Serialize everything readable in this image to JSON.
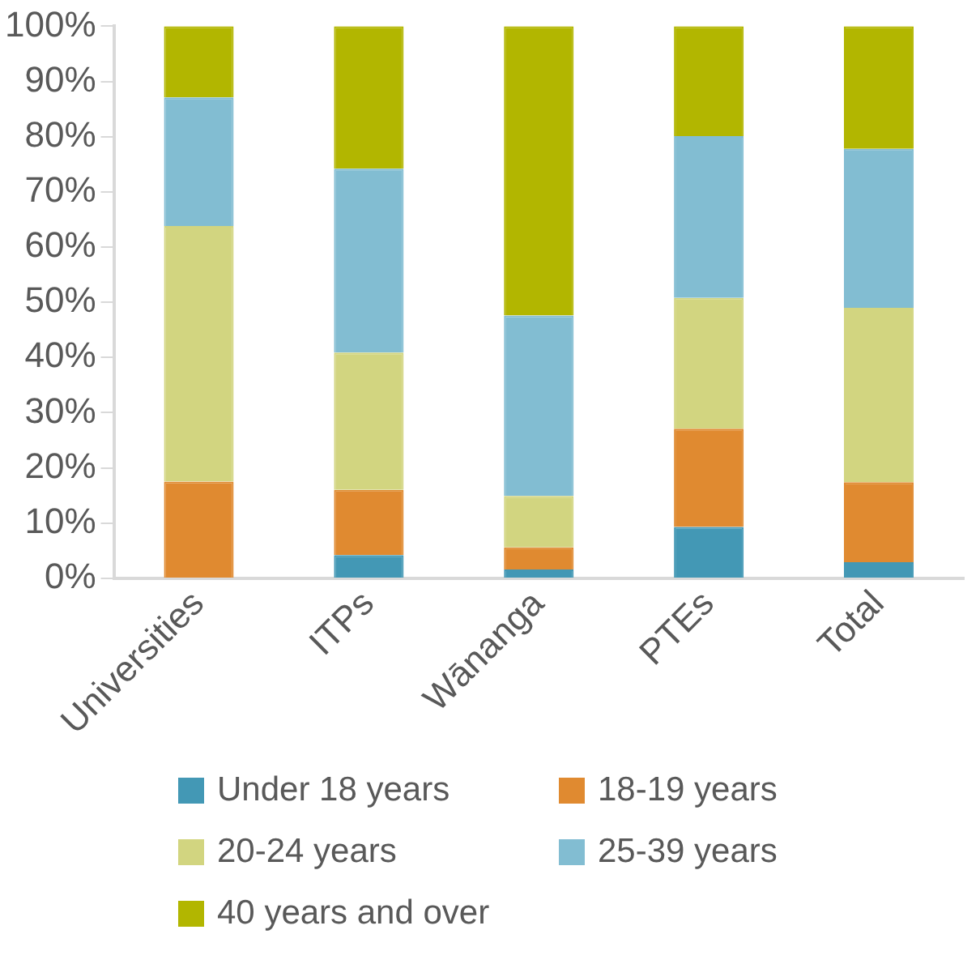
{
  "chart_data": {
    "type": "bar",
    "stacked": true,
    "categories": [
      "Universities",
      "ITPs",
      "Wānanga",
      "PTEs",
      "Total"
    ],
    "series": [
      {
        "name": "Under 18 years",
        "color": "#4398b5",
        "values": [
          0,
          4.2,
          1.6,
          9.3,
          2.9
        ]
      },
      {
        "name": "18-19 years",
        "color": "#e08a30",
        "values": [
          17.5,
          11.8,
          4.0,
          17.8,
          14.5
        ]
      },
      {
        "name": "20-24 years",
        "color": "#d2d580",
        "values": [
          46.3,
          24.9,
          9.3,
          23.7,
          31.6
        ]
      },
      {
        "name": "25-39 years",
        "color": "#82bdd2",
        "values": [
          23.3,
          33.3,
          32.7,
          29.3,
          28.8
        ]
      },
      {
        "name": "40 years and over",
        "color": "#b2b600",
        "values": [
          12.9,
          25.8,
          52.4,
          19.9,
          22.2
        ]
      }
    ],
    "ylim": [
      0,
      100
    ],
    "yticks": [
      {
        "value": 0,
        "label": "0%"
      },
      {
        "value": 10,
        "label": "10%"
      },
      {
        "value": 20,
        "label": "20%"
      },
      {
        "value": 30,
        "label": "30%"
      },
      {
        "value": 40,
        "label": "40%"
      },
      {
        "value": 50,
        "label": "50%"
      },
      {
        "value": 60,
        "label": "60%"
      },
      {
        "value": 70,
        "label": "70%"
      },
      {
        "value": 80,
        "label": "80%"
      },
      {
        "value": 90,
        "label": "90%"
      },
      {
        "value": 100,
        "label": "100%"
      }
    ],
    "grid": false,
    "legend": "bottom"
  }
}
